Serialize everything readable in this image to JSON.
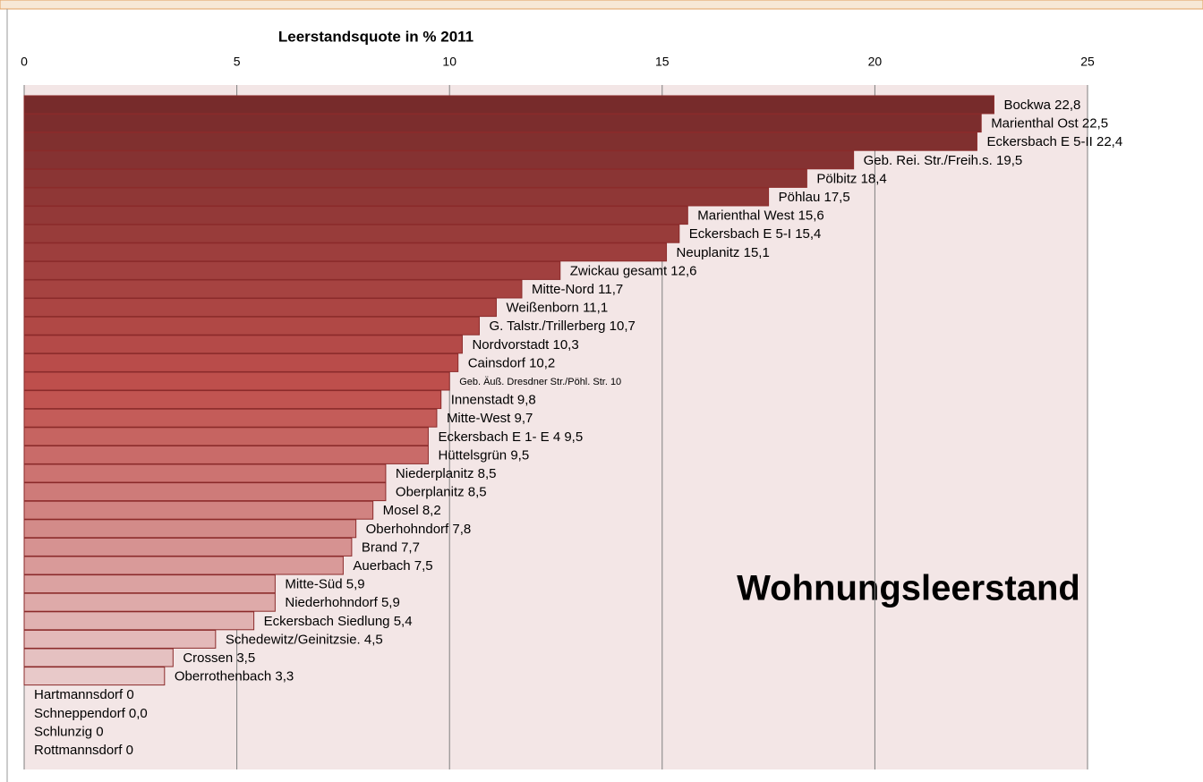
{
  "chart_data": {
    "type": "bar",
    "orientation": "horizontal",
    "title": "Leerstandsquote in % 2011",
    "annotation": "Wohnungsleerstand",
    "categories": [
      "Bockwa",
      "Marienthal Ost",
      "Eckersbach E 5-II",
      "Geb. Rei. Str./Freih.s.",
      "Pölbitz",
      "Pöhlau",
      "Marienthal West",
      "Eckersbach E 5-I",
      "Neuplanitz",
      "Zwickau gesamt",
      "Mitte-Nord",
      "Weißenborn",
      "G. Talstr./Trillerberg",
      "Nordvorstadt",
      "Cainsdorf",
      "Geb. Äuß. Dresdner Str./Pöhl. Str.",
      "Innenstadt",
      "Mitte-West",
      "Eckersbach E 1- E 4",
      "Hüttelsgrün",
      "Niederplanitz",
      "Oberplanitz",
      "Mosel",
      "Oberhohndorf",
      "Brand",
      "Auerbach",
      "Mitte-Süd",
      "Niederhohndorf",
      "Eckersbach Siedlung",
      "Schedewitz/Geinitzsie.",
      "Crossen",
      "Oberrothenbach",
      "Hartmannsdorf",
      "Schneppendorf",
      "Schlunzig",
      "Rottmannsdorf"
    ],
    "values": [
      22.8,
      22.5,
      22.4,
      19.5,
      18.4,
      17.5,
      15.6,
      15.4,
      15.1,
      12.6,
      11.7,
      11.1,
      10.7,
      10.3,
      10.2,
      10,
      9.8,
      9.7,
      9.5,
      9.5,
      8.5,
      8.5,
      8.2,
      7.8,
      7.7,
      7.5,
      5.9,
      5.9,
      5.4,
      4.5,
      3.5,
      3.3,
      0,
      0,
      0,
      0
    ],
    "value_labels": [
      "22,8",
      "22,5",
      "22,4",
      "19,5",
      "18,4",
      "17,5",
      "15,6",
      "15,4",
      "15,1",
      "12,6",
      "11,7",
      "11,1",
      "10,7",
      "10,3",
      "10,2",
      "10",
      "9,8",
      "9,7",
      "9,5",
      "9,5",
      "8,5",
      "8,5",
      "8,2",
      "7,8",
      "7,7",
      "7,5",
      "5,9",
      "5,9",
      "5,4",
      "4,5",
      "3,5",
      "3,3",
      "0",
      "0,0",
      "0",
      "0"
    ],
    "color_scale": [
      "#772b2b",
      "#c0504d",
      "#e8c9c9"
    ],
    "xlim": [
      0,
      25
    ],
    "xticks": [
      0,
      5,
      10,
      15,
      20,
      25
    ],
    "grid": true
  }
}
